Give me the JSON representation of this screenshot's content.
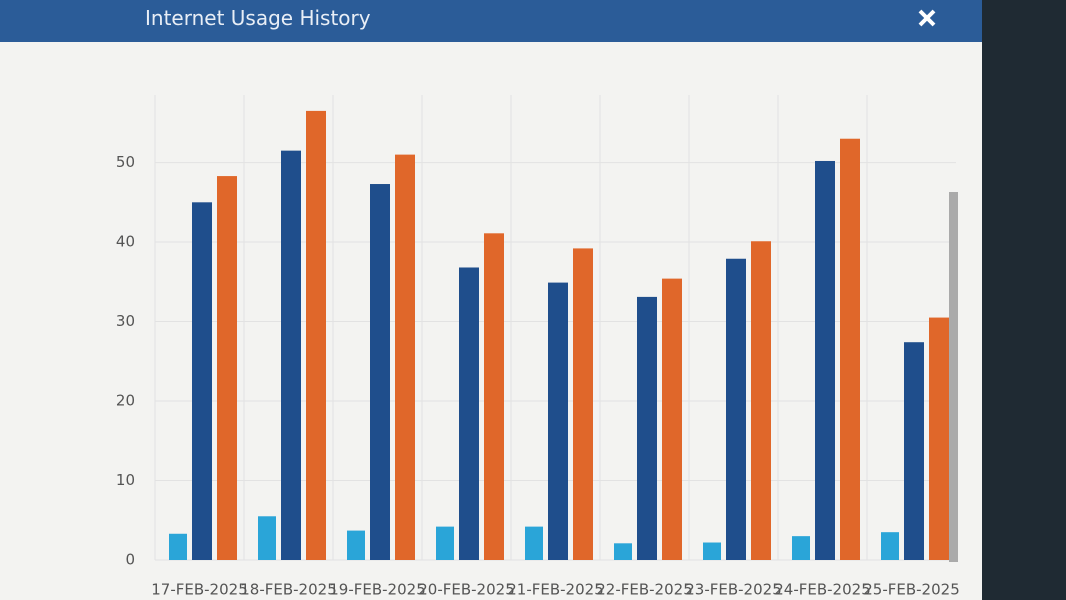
{
  "header": {
    "title": "Internet Usage History"
  },
  "chart_data": {
    "type": "bar",
    "categories": [
      "17-FEB-2025",
      "18-FEB-2025",
      "19-FEB-2025",
      "20-FEB-2025",
      "21-FEB-2025",
      "22-FEB-2025",
      "23-FEB-2025",
      "24-FEB-2025",
      "25-FEB-2025"
    ],
    "series": [
      {
        "color": "#2aa5d8",
        "values": [
          3.3,
          5.5,
          3.7,
          4.2,
          4.2,
          2.1,
          2.2,
          3.0,
          3.5
        ]
      },
      {
        "color": "#1f4e8c",
        "values": [
          45,
          51.5,
          47.3,
          36.8,
          34.9,
          33.1,
          37.9,
          50.2,
          27.4
        ]
      },
      {
        "color": "#e0672a",
        "values": [
          48.3,
          56.5,
          51,
          41.1,
          39.2,
          35.4,
          40.1,
          53,
          30.5
        ]
      }
    ],
    "ylim": [
      0,
      58.5
    ],
    "yticks": [
      0,
      10,
      20,
      30,
      40,
      50
    ],
    "grid": true
  }
}
